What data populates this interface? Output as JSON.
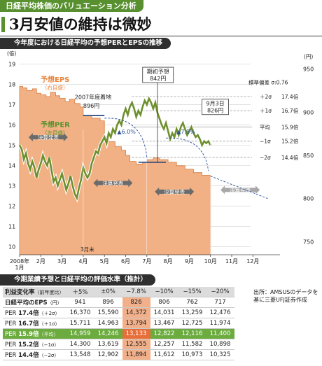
{
  "header": {
    "tag": "日経平均株価のバリュエーション分析",
    "headline": "3月安値の維持は微妙"
  },
  "chart_section_title": "今年度における日経平均の予想PERとEPSの推移",
  "table_section_title": "今期業績予想と日経平均の評価水準（推計）",
  "colors": {
    "green": "#58902f",
    "orange": "#e8853f",
    "eps_fill": "#f1b184",
    "gray": "#888888"
  },
  "chart_data": {
    "type": "line",
    "x_ticks": [
      "2008年\n1月",
      "2月",
      "3月",
      "4月",
      "5月",
      "6月",
      "7月",
      "8月",
      "9月",
      "10月",
      "11月",
      "12月"
    ],
    "left_axis": {
      "ticks": [
        "19",
        "18",
        "17",
        "16",
        "15",
        "14",
        "13",
        "12",
        "11",
        "10"
      ],
      "unit": "(倍)",
      "ylim": [
        9.6,
        19.4
      ]
    },
    "right_axis": {
      "ticks": [
        "950",
        "900",
        "850",
        "800",
        "750"
      ],
      "unit": "(円)",
      "ylim": [
        735,
        965
      ]
    },
    "per_series": {
      "name": "予想PER",
      "sublabel": "（左目盛）",
      "points": [
        [
          0.0,
          15.0
        ],
        [
          0.1,
          14.8
        ],
        [
          0.2,
          14.3
        ],
        [
          0.3,
          14.6
        ],
        [
          0.4,
          14.1
        ],
        [
          0.5,
          13.8
        ],
        [
          0.6,
          14.2
        ],
        [
          0.7,
          13.9
        ],
        [
          0.8,
          13.4
        ],
        [
          0.9,
          13.8
        ],
        [
          1.0,
          14.1
        ],
        [
          1.1,
          14.5
        ],
        [
          1.2,
          14.2
        ],
        [
          1.3,
          14.0
        ],
        [
          1.4,
          14.4
        ],
        [
          1.5,
          13.8
        ],
        [
          1.6,
          13.2
        ],
        [
          1.7,
          13.4
        ],
        [
          1.8,
          13.0
        ],
        [
          1.9,
          13.3
        ],
        [
          2.0,
          13.6
        ],
        [
          2.1,
          13.2
        ],
        [
          2.2,
          12.8
        ],
        [
          2.3,
          13.1
        ],
        [
          2.4,
          13.5
        ],
        [
          2.5,
          13.0
        ],
        [
          2.6,
          12.6
        ],
        [
          2.7,
          12.4
        ],
        [
          2.8,
          12.9
        ],
        [
          2.9,
          13.3
        ],
        [
          3.0,
          13.9
        ],
        [
          3.1,
          13.6
        ],
        [
          3.2,
          13.4
        ],
        [
          3.3,
          13.6
        ],
        [
          3.4,
          14.1
        ],
        [
          3.5,
          14.4
        ],
        [
          3.6,
          14.7
        ],
        [
          3.7,
          14.6
        ],
        [
          3.8,
          15.0
        ],
        [
          3.9,
          15.2
        ],
        [
          4.0,
          15.4
        ],
        [
          4.1,
          15.1
        ],
        [
          4.2,
          15.6
        ],
        [
          4.3,
          15.4
        ],
        [
          4.4,
          15.8
        ],
        [
          4.5,
          15.6
        ],
        [
          4.6,
          16.0
        ],
        [
          4.7,
          16.2
        ],
        [
          4.8,
          16.0
        ],
        [
          4.9,
          16.5
        ],
        [
          5.0,
          16.8
        ],
        [
          5.1,
          16.5
        ],
        [
          5.2,
          16.9
        ],
        [
          5.3,
          17.1
        ],
        [
          5.4,
          16.8
        ],
        [
          5.5,
          16.4
        ],
        [
          5.6,
          16.7
        ],
        [
          5.7,
          16.5
        ],
        [
          5.8,
          16.9
        ],
        [
          5.9,
          17.2
        ],
        [
          6.0,
          17.0
        ],
        [
          6.1,
          17.3
        ],
        [
          6.2,
          17.1
        ],
        [
          6.3,
          16.8
        ],
        [
          6.4,
          17.1
        ],
        [
          6.5,
          16.6
        ],
        [
          6.6,
          16.3
        ],
        [
          6.7,
          16.0
        ],
        [
          6.8,
          15.8
        ],
        [
          6.9,
          16.1
        ],
        [
          7.0,
          15.7
        ],
        [
          7.1,
          15.3
        ],
        [
          7.2,
          15.6
        ],
        [
          7.3,
          15.4
        ],
        [
          7.4,
          15.8
        ],
        [
          7.5,
          15.5
        ],
        [
          7.6,
          15.9
        ],
        [
          7.7,
          16.1
        ],
        [
          7.8,
          15.8
        ],
        [
          7.9,
          15.5
        ],
        [
          8.0,
          15.7
        ],
        [
          8.1,
          15.9
        ],
        [
          8.2,
          15.6
        ],
        [
          8.3,
          15.4
        ],
        [
          8.4,
          15.5
        ],
        [
          8.5,
          15.3
        ],
        [
          8.6,
          15.0
        ],
        [
          8.7,
          15.2
        ],
        [
          8.8,
          15.1
        ],
        [
          8.9,
          15.2
        ],
        [
          9.0,
          15.0
        ]
      ]
    },
    "eps_series": {
      "name": "予想EPS",
      "sublabel": "（右目盛）",
      "steps": [
        [
          0.0,
          930
        ],
        [
          0.15,
          928
        ],
        [
          0.35,
          925
        ],
        [
          0.6,
          927
        ],
        [
          0.8,
          922
        ],
        [
          1.0,
          920
        ],
        [
          1.25,
          918
        ],
        [
          1.45,
          923
        ],
        [
          1.7,
          919
        ],
        [
          1.9,
          916
        ],
        [
          2.15,
          912
        ],
        [
          2.35,
          915
        ],
        [
          2.6,
          910
        ],
        [
          2.85,
          906
        ],
        [
          3.0,
          896
        ],
        [
          3.4,
          893
        ],
        [
          3.8,
          890
        ],
        [
          4.0,
          872
        ],
        [
          4.2,
          866
        ],
        [
          4.5,
          860
        ],
        [
          4.8,
          856
        ],
        [
          5.0,
          850
        ],
        [
          5.2,
          843
        ],
        [
          5.5,
          840
        ],
        [
          5.8,
          842
        ],
        [
          6.0,
          845
        ],
        [
          6.3,
          847
        ],
        [
          6.6,
          845
        ],
        [
          7.0,
          842
        ],
        [
          7.4,
          838
        ],
        [
          7.8,
          834
        ],
        [
          8.2,
          830
        ],
        [
          8.6,
          827
        ],
        [
          9.0,
          826
        ]
      ]
    },
    "stat_levels": [
      {
        "sigma": "＋2σ",
        "value_label": "17.4倍",
        "value": 17.4
      },
      {
        "sigma": "＋1σ",
        "value_label": "16.7倍",
        "value": 16.7
      },
      {
        "sigma": "平均",
        "value_label": "15.9倍",
        "value": 15.9
      },
      {
        "sigma": "−1σ",
        "value_label": "15.2倍",
        "value": 15.2
      },
      {
        "sigma": "−2σ",
        "value_label": "14.4倍",
        "value": 14.4
      }
    ],
    "stat_header": "標準偏差 σ:0.76",
    "annotations": {
      "fy2007": "2007年度着地",
      "fy2007_value": "896円",
      "initial_forecast": "期初予想",
      "initial_value": "842円",
      "sep3": "9月3日",
      "sep3_value": "826円",
      "pct1": "▲6.0%",
      "pct2": "▲7.8%",
      "march_end": "3月末",
      "earnings": "決算発表"
    }
  },
  "table": {
    "header": [
      "利益変化率",
      "（前年度比）",
      "＋5%",
      "±0%",
      "−7.8%",
      "−10%",
      "−15%",
      "−20%"
    ],
    "eps_row": [
      "日経平均のEPS",
      "（円）",
      "941",
      "896",
      "826",
      "806",
      "762",
      "717"
    ],
    "rows": [
      [
        "PER",
        "17.4倍",
        "（＋2σ）",
        "16,370",
        "15,590",
        "14,372",
        "14,031",
        "13,259",
        "12,476"
      ],
      [
        "PER",
        "16.7倍",
        "（＋1σ）",
        "15,711",
        "14,963",
        "13,794",
        "13,467",
        "12,725",
        "11,974"
      ],
      [
        "PER",
        "15.9倍",
        "（平均）",
        "14,959",
        "14,246",
        "13,133",
        "12,822",
        "12,116",
        "11,400"
      ],
      [
        "PER",
        "15.2倍",
        "（−1σ）",
        "14,300",
        "13,619",
        "12,555",
        "12,257",
        "11,582",
        "10,898"
      ],
      [
        "PER",
        "14.4倍",
        "（−2σ）",
        "13,548",
        "12,902",
        "11,894",
        "11,612",
        "10,973",
        "10,325"
      ]
    ]
  },
  "source": "出所：AMSUSのデータを基に三菱UFJ証券作成"
}
